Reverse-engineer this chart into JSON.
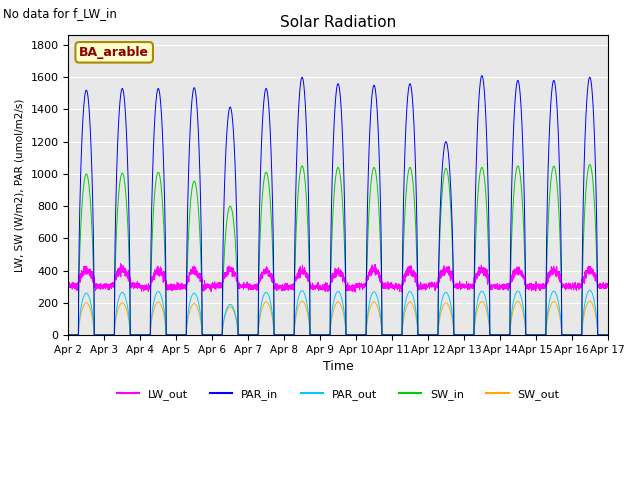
{
  "title": "Solar Radiation",
  "top_left_text": "No data for f_LW_in",
  "legend_box_label": "BA_arable",
  "xlabel": "Time",
  "ylabel": "LW, SW (W/m2), PAR (umol/m2/s)",
  "ylim": [
    0,
    1860
  ],
  "yticks": [
    0,
    200,
    400,
    600,
    800,
    1000,
    1200,
    1400,
    1600,
    1800
  ],
  "xlim_start": 2,
  "xlim_end": 17,
  "xtick_labels": [
    "Apr 2",
    "Apr 3",
    "Apr 4",
    "Apr 5",
    "Apr 6",
    "Apr 7",
    "Apr 8",
    "Apr 9",
    "Apr 10",
    "Apr 11",
    "Apr 12",
    "Apr 13",
    "Apr 14",
    "Apr 15",
    "Apr 16",
    "Apr 17"
  ],
  "xtick_positions": [
    2,
    3,
    4,
    5,
    6,
    7,
    8,
    9,
    10,
    11,
    12,
    13,
    14,
    15,
    16,
    17
  ],
  "colors": {
    "LW_out": "#ff00ff",
    "PAR_in": "#0000ff",
    "PAR_out": "#00ccff",
    "SW_in": "#00cc00",
    "SW_out": "#ffaa00"
  },
  "PAR_in_peaks": [
    1520,
    1530,
    1530,
    1535,
    1415,
    1530,
    1600,
    1560,
    1550,
    1560,
    1200,
    1610,
    1580,
    1580,
    1600
  ],
  "SW_in_peaks": [
    1000,
    1005,
    1010,
    955,
    800,
    1010,
    1050,
    1040,
    1040,
    1040,
    1035,
    1040,
    1050,
    1048,
    1058
  ],
  "PAR_out_peaks": [
    260,
    265,
    270,
    260,
    190,
    265,
    275,
    270,
    268,
    270,
    265,
    272,
    272,
    272,
    278
  ],
  "SW_out_peaks": [
    200,
    200,
    205,
    195,
    175,
    205,
    210,
    205,
    205,
    205,
    200,
    207,
    208,
    207,
    210
  ],
  "background_color": "#e8e8e8",
  "n_days": 15,
  "samples_per_day": 288
}
